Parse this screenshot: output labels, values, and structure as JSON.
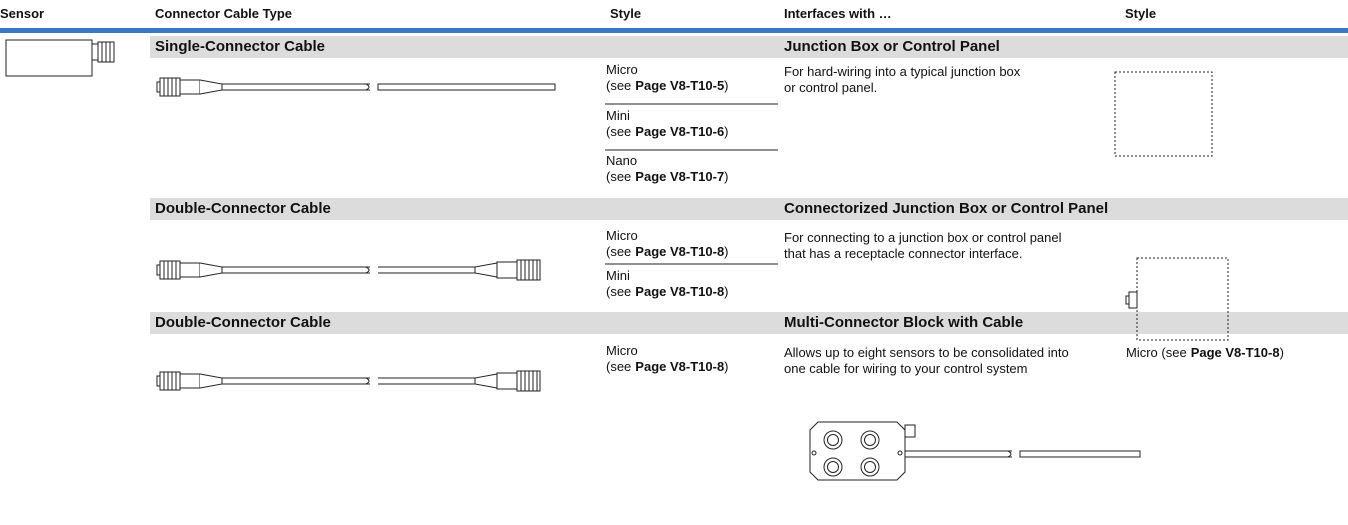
{
  "header": {
    "columns": [
      "Sensor",
      "Connector Cable Type",
      "Style",
      "Interfaces with …",
      "Style"
    ]
  },
  "sections": [
    {
      "cable_type": "Single-Connector Cable",
      "interface": "Junction Box or Control Panel",
      "styles": [
        {
          "name": "Micro",
          "see": "(see",
          "page": "Page V8-T10-5",
          "close": ")"
        },
        {
          "name": "Mini",
          "see": "(see",
          "page": "Page V8-T10-6",
          "close": ")"
        },
        {
          "name": "Nano",
          "see": "(see",
          "page": "Page V8-T10-7",
          "close": ")"
        }
      ],
      "description": [
        "For hard-wiring into a typical junction box",
        "or control panel."
      ]
    },
    {
      "cable_type": "Double-Connector Cable",
      "interface": "Connectorized Junction Box or Control Panel",
      "styles": [
        {
          "name": "Micro",
          "see": "(see",
          "page": "Page V8-T10-8",
          "close": ")"
        },
        {
          "name": "Mini",
          "see": "(see",
          "page": "Page V8-T10-8",
          "close": ")"
        }
      ],
      "description": [
        "For connecting to a junction box or control panel",
        "that has a receptacle connector interface."
      ]
    },
    {
      "cable_type": "Double-Connector Cable",
      "interface": "Multi-Connector Block with Cable",
      "styles": [
        {
          "name": "Micro",
          "see": "(see",
          "page": "Page V8-T10-8",
          "close": ")"
        }
      ],
      "description": [
        "Allows up to eight sensors to be consolidated into",
        "one cable for wiring to your control system"
      ],
      "interface_style": {
        "name": "Micro (see",
        "page": "Page V8-T10-8",
        "close": ")"
      }
    }
  ]
}
